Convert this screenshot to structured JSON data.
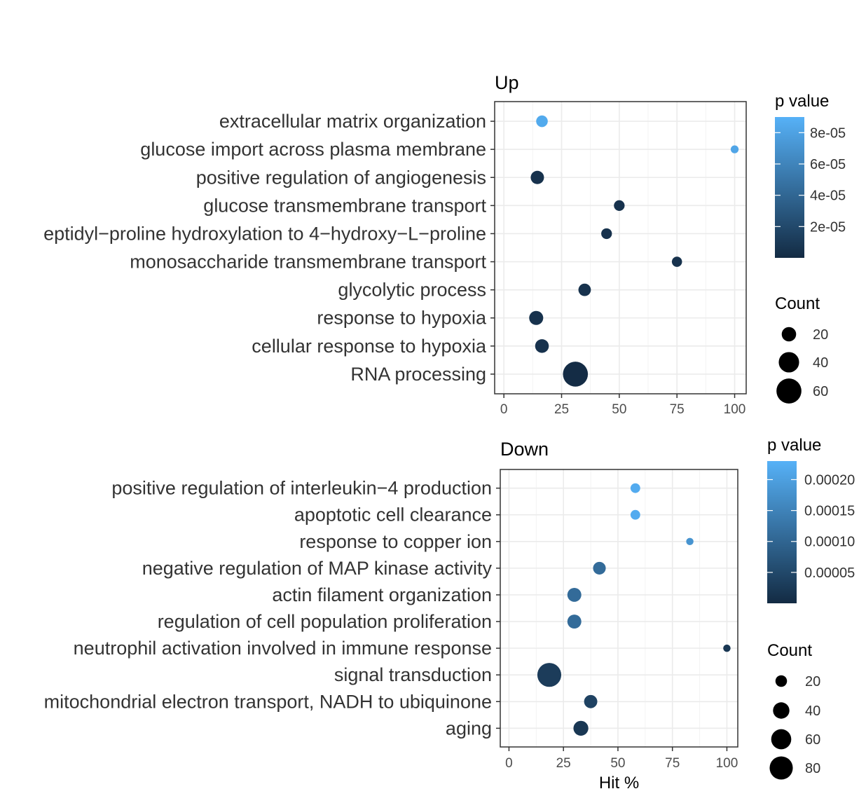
{
  "chart_data": [
    {
      "type": "scatter",
      "title": "Up",
      "xlabel": "",
      "xlim": [
        -4,
        105
      ],
      "xticks": [
        0,
        25,
        50,
        75,
        100
      ],
      "categories": [
        "extracellular matrix organization",
        "glucose import across plasma membrane",
        "positive regulation of angiogenesis",
        "glucose transmembrane transport",
        "eptidyl−proline hydroxylation to 4−hydroxy−L−proline",
        "monosaccharide transmembrane transport",
        "glycolytic process",
        "response to hypoxia",
        "cellular response to hypoxia",
        "RNA processing"
      ],
      "hit_percent": [
        16.5,
        100,
        14.5,
        50,
        44.5,
        75,
        35,
        14,
        16.5,
        31
      ],
      "count": [
        13,
        6,
        17,
        11,
        11,
        10,
        15,
        19,
        18,
        60
      ],
      "p_value": [
        8.5e-05,
        8.2e-05,
        5e-06,
        5e-06,
        5e-06,
        5e-06,
        5e-06,
        5e-06,
        5e-06,
        1e-06
      ],
      "legend": {
        "color_title": "p value",
        "color_ticks": [
          "8e-05",
          "6e-05",
          "4e-05",
          "2e-05"
        ],
        "size_title": "Count",
        "size_ticks": [
          "20",
          "40",
          "60"
        ]
      }
    },
    {
      "type": "scatter",
      "title": "Down",
      "xlabel": "Hit %",
      "xlim": [
        -4,
        105
      ],
      "xticks": [
        0,
        25,
        50,
        75,
        100
      ],
      "categories": [
        "positive regulation of interleukin−4 production",
        "apoptotic cell clearance",
        "response to copper ion",
        "negative regulation of MAP kinase activity",
        "actin filament organization",
        "regulation of cell population proliferation",
        "neutrophil activation involved in immune response",
        "signal transduction",
        "mitochondrial electron transport, NADH to ubiquinone",
        "aging"
      ],
      "hit_percent": [
        58,
        58,
        83,
        41.5,
        30,
        30,
        100,
        18.5,
        37.5,
        33
      ],
      "count": [
        14,
        14,
        8,
        24,
        29,
        29,
        8,
        85,
        26,
        33
      ],
      "p_value": [
        0.00022,
        0.00022,
        0.00018,
        0.00011,
        0.00011,
        0.00011,
        2e-05,
        3e-05,
        4e-05,
        2e-05
      ],
      "legend": {
        "color_title": "p value",
        "color_ticks": [
          "0.00020",
          "0.00015",
          "0.00010",
          "0.00005"
        ],
        "size_title": "Count",
        "size_ticks": [
          "20",
          "40",
          "60",
          "80"
        ]
      }
    }
  ]
}
